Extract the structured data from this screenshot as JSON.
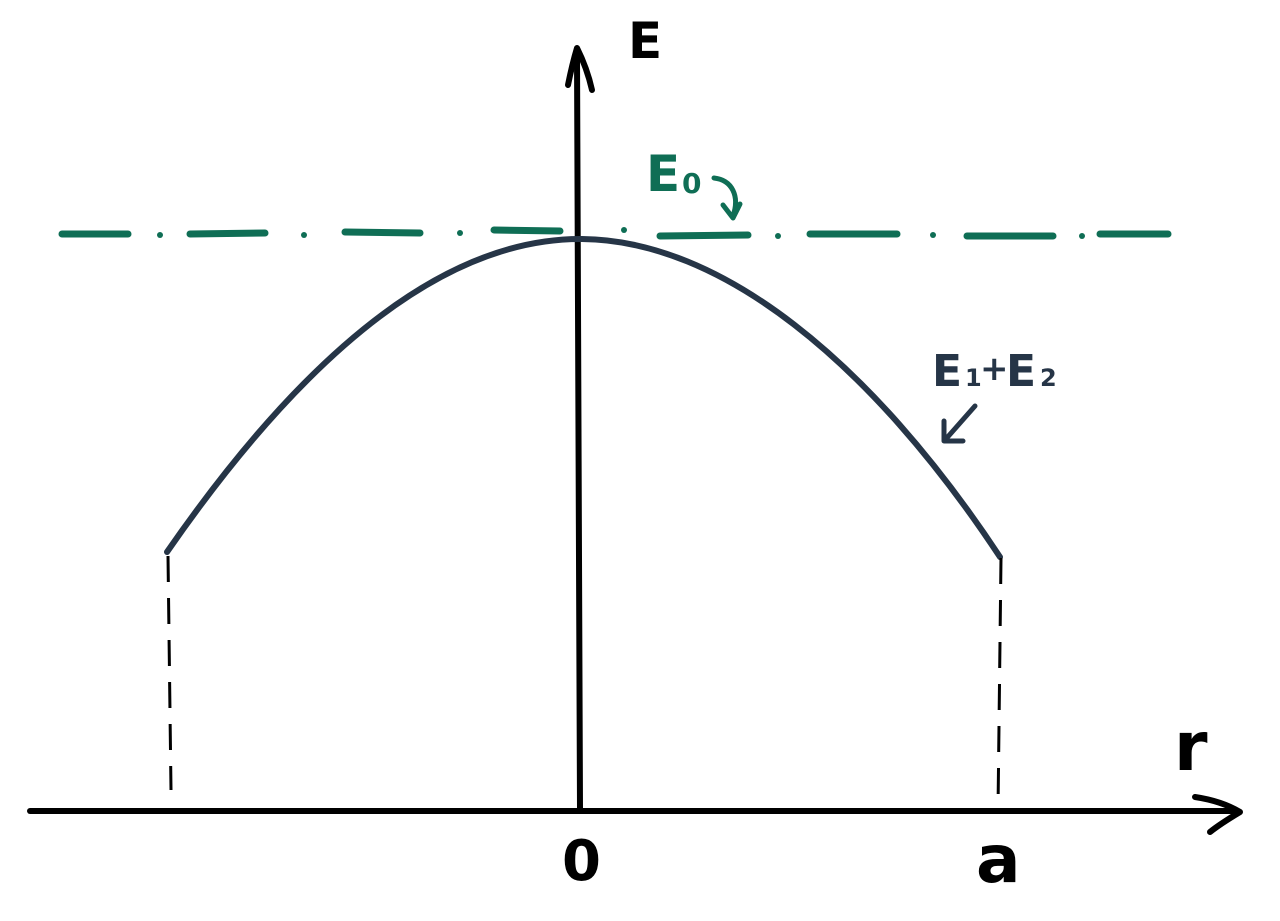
{
  "labels": {
    "y_axis": "E",
    "x_axis": "r",
    "origin": "0",
    "a_tick": "a",
    "e0_letter": "E",
    "e0_subscript": "0",
    "sum_e1_letter": "E",
    "sum_e1_subscript": "1",
    "sum_plus": "+",
    "sum_e2_letter": "E",
    "sum_e2_subscript": "2"
  },
  "colors": {
    "axis": "#000000",
    "curve": "#263547",
    "e0_line": "#0f6e55",
    "guide": "#000000"
  }
}
